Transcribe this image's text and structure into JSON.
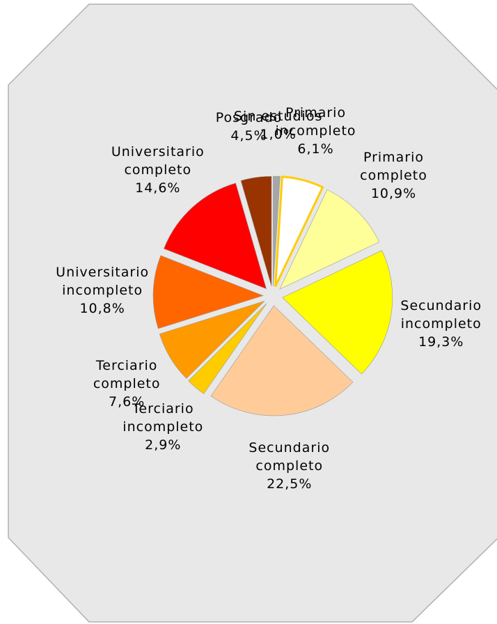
{
  "chart_data": {
    "type": "pie",
    "categories": [
      "Sin estudios",
      "Primario incompleto",
      "Primario completo",
      "Secundario incompleto",
      "Secundario completo",
      "Terciario incompleto",
      "Terciario completo",
      "Universitario incompleto",
      "Universitario completo",
      "Posgrado"
    ],
    "values": [
      1.0,
      6.1,
      10.9,
      19.3,
      22.5,
      2.9,
      7.6,
      10.8,
      14.6,
      4.5
    ],
    "value_labels": [
      "1,0%",
      "6,1%",
      "10,9%",
      "19,3%",
      "22,5%",
      "2,9%",
      "7,6%",
      "10,8%",
      "14,6%",
      "4,5%"
    ],
    "colors": [
      "#a6a6a6",
      "#ffffff",
      "#ffff99",
      "#ffff00",
      "#ffcc99",
      "#ffcc00",
      "#ff9900",
      "#ff6600",
      "#ff0000",
      "#993300"
    ]
  }
}
